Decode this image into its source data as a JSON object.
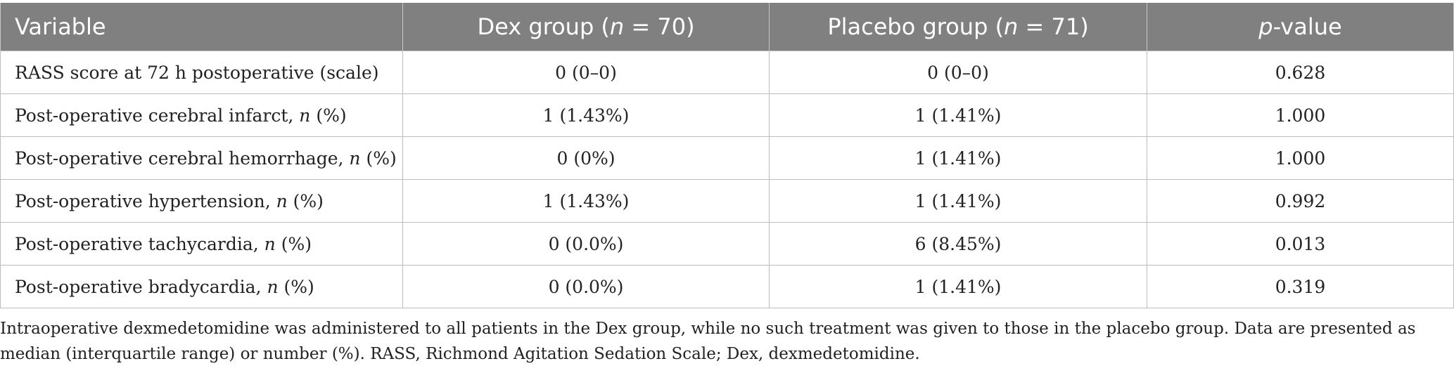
{
  "table": {
    "headers": [
      {
        "text": "Variable"
      },
      {
        "pre": "Dex group (",
        "ital": "n",
        "post": " = 70)"
      },
      {
        "pre": "Placebo group (",
        "ital": "n",
        "post": " = 71)"
      },
      {
        "pre": "",
        "ital": "p",
        "post": "-value"
      }
    ],
    "rows": [
      {
        "label_pre": "RASS score at 72 h postoperative (scale)",
        "label_ital": "",
        "label_post": "",
        "dex": "0 (0–0)",
        "placebo": "0 (0–0)",
        "p": "0.628"
      },
      {
        "label_pre": "Post-operative cerebral infarct, ",
        "label_ital": "n",
        "label_post": " (%)",
        "dex": "1 (1.43%)",
        "placebo": "1 (1.41%)",
        "p": "1.000"
      },
      {
        "label_pre": "Post-operative cerebral hemorrhage, ",
        "label_ital": "n",
        "label_post": " (%)",
        "dex": "0 (0%)",
        "placebo": "1 (1.41%)",
        "p": "1.000"
      },
      {
        "label_pre": "Post-operative hypertension, ",
        "label_ital": "n",
        "label_post": " (%)",
        "dex": "1 (1.43%)",
        "placebo": "1 (1.41%)",
        "p": "0.992"
      },
      {
        "label_pre": "Post-operative tachycardia, ",
        "label_ital": "n",
        "label_post": " (%)",
        "dex": "0 (0.0%)",
        "placebo": "6 (8.45%)",
        "p": "0.013"
      },
      {
        "label_pre": "Post-operative bradycardia, ",
        "label_ital": "n",
        "label_post": " (%)",
        "dex": "0 (0.0%)",
        "placebo": "1 (1.41%)",
        "p": "0.319"
      }
    ]
  },
  "footnote": "Intraoperative dexmedetomidine was administered to all patients in the Dex group, while no such treatment was given to those in the placebo group. Data are presented as median (interquartile range) or number (%). RASS, Richmond Agitation Sedation Scale; Dex, dexmedetomidine."
}
